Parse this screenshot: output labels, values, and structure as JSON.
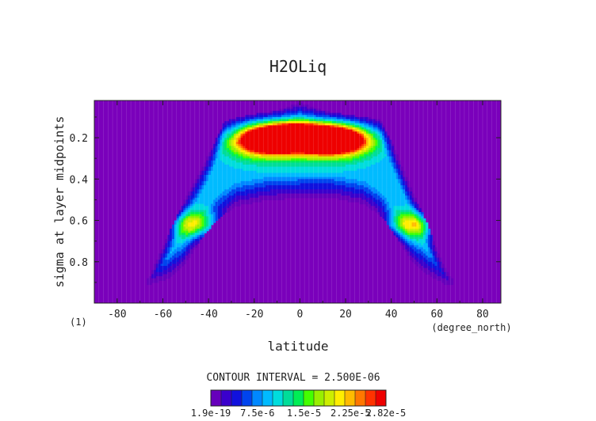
{
  "chart_data": {
    "type": "heatmap",
    "title": "H2OLiq",
    "xlabel": "latitude",
    "ylabel": "sigma at layer midpoints",
    "x_unit": "(degree_north)",
    "corner_label": "(1)",
    "xlim": [
      -90,
      88
    ],
    "ylim": [
      1.0,
      0.02
    ],
    "x_ticks": [
      "-80",
      "-60",
      "-40",
      "-20",
      "0",
      "20",
      "40",
      "60",
      "80"
    ],
    "x_tick_values": [
      -80,
      -60,
      -40,
      -20,
      0,
      20,
      40,
      60,
      80
    ],
    "y_ticks": [
      "0.2",
      "0.4",
      "0.6",
      "0.8"
    ],
    "y_tick_values": [
      0.2,
      0.4,
      0.6,
      0.8
    ],
    "contour_interval_text": "CONTOUR INTERVAL = 2.500E-06",
    "colorbar_labels": [
      "1.9e-19",
      "7.5e-6",
      "1.5e-5",
      "2.25e-5",
      "2.82e-5"
    ],
    "colorbar_values": [
      0,
      7.5e-06,
      1.5e-05,
      2.25e-05,
      2.82e-05
    ],
    "vmax": 2.82e-05,
    "colors": [
      "#6600bb",
      "#3a00cc",
      "#1111dd",
      "#0044ee",
      "#0088ff",
      "#00bbff",
      "#00dddd",
      "#00dd99",
      "#00ee55",
      "#44ff00",
      "#99ee00",
      "#ccee00",
      "#ffee00",
      "#ffbb00",
      "#ff7700",
      "#ff3300",
      "#ee0000"
    ],
    "background_color": "#7a00bb",
    "cloud_envelope": {
      "top_left": [
        [
          -66,
          0.88
        ],
        [
          -63,
          0.8
        ],
        [
          -58,
          0.68
        ],
        [
          -53,
          0.56
        ],
        [
          -48,
          0.45
        ],
        [
          -43,
          0.35
        ],
        [
          -38,
          0.24
        ],
        [
          -33,
          0.12
        ],
        [
          -22,
          0.09
        ],
        [
          -10,
          0.07
        ],
        [
          0,
          0.03
        ],
        [
          10,
          0.07
        ],
        [
          20,
          0.09
        ],
        [
          35,
          0.11
        ],
        [
          40,
          0.22
        ]
      ],
      "top_right": [
        [
          45,
          0.35
        ],
        [
          50,
          0.48
        ],
        [
          55,
          0.6
        ],
        [
          59,
          0.72
        ],
        [
          63,
          0.82
        ],
        [
          66,
          0.88
        ]
      ],
      "bottom": [
        [
          64,
          0.91
        ],
        [
          56,
          0.86
        ],
        [
          49,
          0.8
        ],
        [
          43,
          0.69
        ],
        [
          36,
          0.58
        ],
        [
          28,
          0.52
        ],
        [
          15,
          0.49
        ],
        [
          0,
          0.49
        ],
        [
          -15,
          0.5
        ],
        [
          -28,
          0.53
        ],
        [
          -37,
          0.6
        ],
        [
          -44,
          0.7
        ],
        [
          -51,
          0.82
        ],
        [
          -58,
          0.88
        ],
        [
          -66,
          0.91
        ]
      ]
    },
    "maxima": [
      {
        "x": -15,
        "y": 0.21,
        "value": 2.7e-05
      },
      {
        "x": -5,
        "y": 0.19,
        "value": 2.82e-05
      },
      {
        "x": 8,
        "y": 0.2,
        "value": 2.8e-05
      },
      {
        "x": 18,
        "y": 0.21,
        "value": 2.6e-05
      },
      {
        "x": -45,
        "y": 0.62,
        "value": 1.5e-05
      },
      {
        "x": 50,
        "y": 0.62,
        "value": 1.6e-05
      }
    ]
  }
}
